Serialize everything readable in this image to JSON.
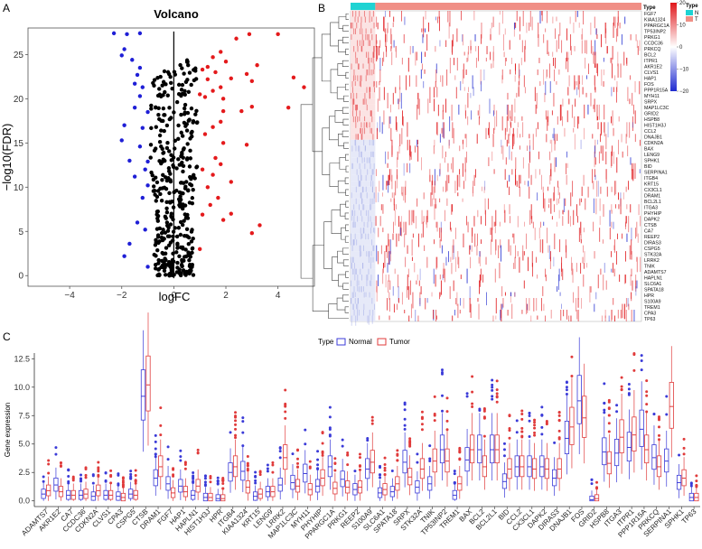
{
  "panel_labels": {
    "a": "A",
    "b": "B",
    "c": "C"
  },
  "colors": {
    "up": "#e41a1c",
    "down": "#1f1fd6",
    "ns": "#000000",
    "normal": "#3b3bd8",
    "tumor": "#e03b3b",
    "type_normal_bar": "#1fd3d3",
    "type_tumor_bar": "#f08f86",
    "heat_pos": "#e0161a",
    "heat_neg": "#1f2bd0"
  },
  "chart_data": [
    {
      "id": "volcano",
      "type": "scatter",
      "title": "Volcano",
      "xlabel": "logFC",
      "ylabel": "−log10(FDR)",
      "xlim": [
        -5.6,
        5.4
      ],
      "ylim": [
        -1.2,
        28
      ],
      "xticks": [
        -4,
        -2,
        0,
        2,
        4
      ],
      "yticks": [
        0,
        5,
        10,
        15,
        20,
        25
      ],
      "vline": 0,
      "series": [
        {
          "name": "up",
          "points": [
            [
              4.0,
              27.3
            ],
            [
              2.9,
              27.3
            ],
            [
              2.4,
              26.8
            ],
            [
              1.8,
              25.3
            ],
            [
              1.5,
              24.7
            ],
            [
              2.0,
              24.2
            ],
            [
              3.2,
              23.8
            ],
            [
              2.8,
              22.8
            ],
            [
              1.3,
              23.6
            ],
            [
              1.1,
              23.3
            ],
            [
              1.6,
              23.0
            ],
            [
              1.3,
              22.2
            ],
            [
              2.2,
              22.3
            ],
            [
              3.0,
              22.0
            ],
            [
              4.6,
              22.4
            ],
            [
              1.8,
              21.3
            ],
            [
              1.5,
              20.9
            ],
            [
              5.0,
              21.3
            ],
            [
              1.9,
              20.0
            ],
            [
              3.0,
              19.1
            ],
            [
              4.4,
              19.0
            ],
            [
              1.2,
              20.2
            ],
            [
              1.0,
              20.5
            ],
            [
              1.9,
              18.6
            ],
            [
              2.6,
              18.6
            ],
            [
              1.8,
              17.4
            ],
            [
              1.5,
              16.8
            ],
            [
              1.2,
              16.0
            ],
            [
              1.9,
              15.0
            ],
            [
              2.8,
              14.8
            ],
            [
              1.6,
              13.3
            ],
            [
              1.8,
              12.6
            ],
            [
              1.1,
              12.0
            ],
            [
              1.5,
              11.4
            ],
            [
              2.2,
              10.6
            ],
            [
              1.3,
              10.0
            ],
            [
              1.7,
              8.8
            ],
            [
              1.4,
              8.0
            ],
            [
              1.1,
              6.9
            ],
            [
              1.9,
              6.3
            ],
            [
              3.3,
              5.7
            ],
            [
              3.0,
              4.8
            ],
            [
              2.2,
              7.0
            ],
            [
              1.0,
              3.0
            ]
          ]
        },
        {
          "name": "down",
          "points": [
            [
              -2.3,
              27.4
            ],
            [
              -1.8,
              27.3
            ],
            [
              -1.3,
              27.4
            ],
            [
              -1.9,
              25.6
            ],
            [
              -2.0,
              24.9
            ],
            [
              -1.6,
              24.4
            ],
            [
              -1.3,
              23.5
            ],
            [
              -1.4,
              22.7
            ],
            [
              -1.5,
              21.7
            ],
            [
              -1.2,
              21.3
            ],
            [
              -1.3,
              20.3
            ],
            [
              -1.5,
              19.0
            ],
            [
              -1.0,
              18.5
            ],
            [
              -1.9,
              17.0
            ],
            [
              -1.2,
              16.7
            ],
            [
              -2.0,
              15.3
            ],
            [
              -1.3,
              14.6
            ],
            [
              -1.7,
              13.0
            ],
            [
              -1.0,
              12.9
            ],
            [
              -1.1,
              12.0
            ],
            [
              -1.5,
              11.2
            ],
            [
              -1.0,
              10.2
            ],
            [
              -1.2,
              8.8
            ],
            [
              -1.4,
              6.0
            ],
            [
              -1.1,
              5.2
            ],
            [
              -1.7,
              3.6
            ],
            [
              -1.9,
              2.2
            ],
            [
              -1.0,
              1.0
            ]
          ]
        },
        {
          "name": "ns",
          "points": []
        }
      ]
    },
    {
      "id": "heatmap",
      "type": "heatmap",
      "type_legend": {
        "title": "Type",
        "labels": [
          "N",
          "T"
        ]
      },
      "colorbar": {
        "ticks": [
          20,
          10,
          0,
          -10,
          -20
        ],
        "range": [
          -20,
          20
        ]
      },
      "type_split": 0.085,
      "row_header": "Type",
      "rows": [
        "FGF7",
        "KIAA1324",
        "PPARGC1A",
        "TP53INP2",
        "PRKG1",
        "CCDC36",
        "PRKCQ",
        "BCL2",
        "ITPR1",
        "AKR1E2",
        "CLVS1",
        "HAP1",
        "FOS",
        "PPP1R15A",
        "MYH11",
        "SRPX",
        "MAP1LC3C",
        "GRID2",
        "HSPB8",
        "HIST1H3J",
        "CCL2",
        "DNAJB1",
        "CDKN2A",
        "BAX",
        "LENG9",
        "SPHK1",
        "BID",
        "SERPINA1",
        "ITGB4",
        "KRT15",
        "CX3CL1",
        "DRAM1",
        "BCL2L1",
        "ITGA3",
        "PHYHIP",
        "DAPK2",
        "CTSB",
        "CA7",
        "REEP2",
        "DIRAS3",
        "CSPG5",
        "STK32A",
        "LRRK2",
        "TNIK",
        "ADAMTS7",
        "HAPLN1",
        "SLC6A1",
        "SPATA18",
        "HPR",
        "S100A9",
        "TREM1",
        "CPA3",
        "TP63"
      ]
    },
    {
      "id": "boxplot",
      "type": "box",
      "ylabel": "Gene expression",
      "ylim": [
        -0.5,
        13.0
      ],
      "yticks": [
        "0.0",
        "2.5",
        "5.0",
        "7.5",
        "10.0",
        "12.5"
      ],
      "legend": {
        "title": "Type",
        "labels": [
          "Normal",
          "Tumor"
        ]
      },
      "genes": [
        "ADAMTS7",
        "AKR1E2",
        "CA7",
        "CCDC36",
        "CDKN2A",
        "CLVS1",
        "CPA3",
        "CSPG5",
        "CTSB",
        "DRAM1",
        "FGF7",
        "HAP1",
        "HAPLN1",
        "HIST1H3J",
        "HPR",
        "ITGB4",
        "KIAA1324",
        "KRT15",
        "LENG9",
        "LRRK2",
        "MAP1LC3C",
        "MYH11",
        "PHYHIP",
        "PPARGC1A",
        "PRKG1",
        "REEP2",
        "S100A9",
        "SLC6A1",
        "SPATA18",
        "SRPX",
        "STK32A",
        "TNIK",
        "TP53INP2",
        "TREM1",
        "BAX",
        "BCL2",
        "BCL2L1",
        "BID",
        "CCL2",
        "CX3CL1",
        "DAPK2",
        "DIRAS3",
        "DNAJB1",
        "FOS",
        "GRID2",
        "HSPB8",
        "ITGA3",
        "ITPR1",
        "PPP1R15A",
        "PRKCQ",
        "SERPINA1",
        "SPHK1",
        "TP63"
      ],
      "normal_medians": [
        0.6,
        1.4,
        0.5,
        0.5,
        0.4,
        0.5,
        0.4,
        0.6,
        9.2,
        2.0,
        1.5,
        1.3,
        0.5,
        0.3,
        0.2,
        2.5,
        2.6,
        0.4,
        0.8,
        1.4,
        1.6,
        2.4,
        1.3,
        3.0,
        1.9,
        1.0,
        2.8,
        0.7,
        0.8,
        3.4,
        1.2,
        1.5,
        4.5,
        0.5,
        3.6,
        4.5,
        4.5,
        1.7,
        3.0,
        3.0,
        3.0,
        2.0,
        5.5,
        8.8,
        0.1,
        4.3,
        4.2,
        4.7,
        6.3,
        3.8,
        3.5,
        1.6,
        0.3
      ],
      "tumor_medians": [
        0.9,
        0.8,
        0.5,
        0.6,
        0.9,
        0.5,
        0.3,
        0.5,
        10.2,
        3.0,
        0.7,
        0.8,
        1.3,
        0.3,
        0.2,
        3.0,
        1.2,
        0.6,
        0.8,
        3.8,
        1.3,
        1.0,
        2.0,
        1.1,
        1.2,
        1.2,
        3.4,
        1.0,
        1.5,
        2.1,
        2.8,
        3.5,
        3.5,
        1.5,
        4.5,
        3.0,
        4.5,
        2.8,
        3.0,
        2.8,
        2.8,
        2.8,
        6.5,
        7.3,
        0.2,
        3.3,
        5.6,
        5.8,
        4.5,
        3.0,
        8.3,
        2.0,
        0.3
      ]
    }
  ]
}
